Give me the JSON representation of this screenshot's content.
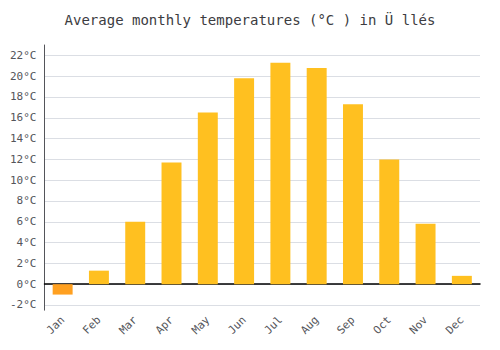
{
  "chart_data": {
    "type": "bar",
    "title": "Average monthly temperatures (°C ) in Ü llés",
    "categories": [
      "Jan",
      "Feb",
      "Mar",
      "Apr",
      "May",
      "Jun",
      "Jul",
      "Aug",
      "Sep",
      "Oct",
      "Nov",
      "Dec"
    ],
    "values": [
      -1.0,
      1.3,
      6.0,
      11.7,
      16.5,
      19.8,
      21.3,
      20.8,
      17.3,
      12.0,
      5.8,
      0.8
    ],
    "colors": [
      "#FFA020",
      "#FFC020",
      "#FFC020",
      "#FFC020",
      "#FFC020",
      "#FFC020",
      "#FFC020",
      "#FFC020",
      "#FFC020",
      "#FFC020",
      "#FFC020",
      "#FFC020"
    ],
    "ylim": [
      -2.5,
      23
    ],
    "yticks": [
      {
        "value": -2,
        "label": "-2°C"
      },
      {
        "value": 0,
        "label": "0°C"
      },
      {
        "value": 2,
        "label": "2°C"
      },
      {
        "value": 4,
        "label": "4°C"
      },
      {
        "value": 6,
        "label": "6°C"
      },
      {
        "value": 8,
        "label": "8°C"
      },
      {
        "value": 10,
        "label": "10°C"
      },
      {
        "value": 12,
        "label": "12°C"
      },
      {
        "value": 14,
        "label": "14°C"
      },
      {
        "value": 16,
        "label": "16°C"
      },
      {
        "value": 18,
        "label": "18°C"
      },
      {
        "value": 20,
        "label": "20°C"
      },
      {
        "value": 22,
        "label": "22°C"
      }
    ],
    "grid": true
  }
}
